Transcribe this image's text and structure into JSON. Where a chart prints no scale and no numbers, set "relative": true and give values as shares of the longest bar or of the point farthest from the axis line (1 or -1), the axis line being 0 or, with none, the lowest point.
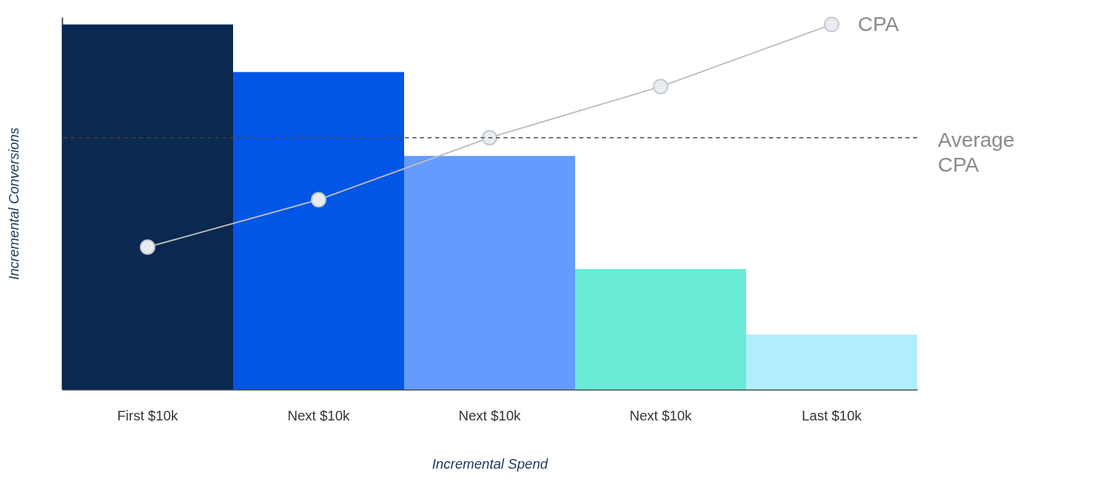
{
  "chart_data": {
    "type": "bar",
    "relative": true,
    "categories": [
      "First $10k",
      "Next $10k",
      "Next $10k",
      "Next $10k",
      "Last $10k"
    ],
    "xlabel": "Incremental Spend",
    "ylabel": "Incremental Conversions",
    "legend": false,
    "grid": false,
    "marker": "circle",
    "series": [
      {
        "colors": [
          "#0a2850",
          "#0256e6",
          "#659bfd",
          "#69ebd8",
          "#b0eefc"
        ],
        "values": [
          1.0,
          0.87,
          0.64,
          0.33,
          0.15
        ]
      },
      {
        "type": "line",
        "name": "CPA",
        "color": "#bdbdbd",
        "values": [
          0.39,
          0.52,
          0.69,
          0.83,
          1.0
        ]
      }
    ],
    "ref_lines": [
      {
        "axis": "y",
        "value": 0.69,
        "label": "Average CPA",
        "line_style": "dashed",
        "color": "#444444"
      }
    ]
  }
}
